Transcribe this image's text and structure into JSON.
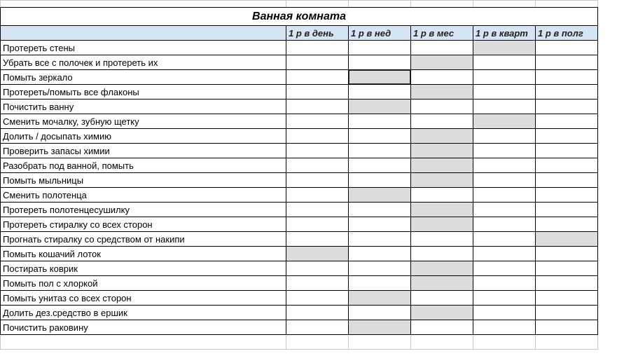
{
  "table": {
    "title": "Ванная комната",
    "columns": [
      "1 р в день",
      "1 р в нед",
      "1 р в мес",
      "1 р в кварт",
      "1 р в полг"
    ],
    "col_widths": {
      "task": 408,
      "freq": 89
    },
    "header_bg": "#d6e5f4",
    "fill_bg": "#dcdcdc",
    "border_color": "#000000",
    "grid_color": "#c9c9c9",
    "title_fontsize": 16,
    "body_fontsize": 13,
    "rows": [
      {
        "task": "Протереть стены",
        "marks": [
          false,
          false,
          false,
          true,
          false
        ],
        "selected": null
      },
      {
        "task": "Убрать все с полочек и протереть их",
        "marks": [
          false,
          false,
          true,
          false,
          false
        ],
        "selected": null
      },
      {
        "task": "Помыть зеркало",
        "marks": [
          false,
          true,
          false,
          false,
          false
        ],
        "selected": 1
      },
      {
        "task": "Протереть/помыть все флаконы",
        "marks": [
          false,
          false,
          true,
          false,
          false
        ],
        "selected": null
      },
      {
        "task": "Почистить ванну",
        "marks": [
          false,
          true,
          false,
          false,
          false
        ],
        "selected": null
      },
      {
        "task": "Сменить мочалку, зубную щетку",
        "marks": [
          false,
          false,
          false,
          true,
          false
        ],
        "selected": null
      },
      {
        "task": "Долить / досыпать химию",
        "marks": [
          false,
          false,
          true,
          false,
          false
        ],
        "selected": null
      },
      {
        "task": "Проверить запасы химии",
        "marks": [
          false,
          false,
          true,
          false,
          false
        ],
        "selected": null
      },
      {
        "task": "Разобрать под ванной, помыть",
        "marks": [
          false,
          false,
          true,
          false,
          false
        ],
        "selected": null
      },
      {
        "task": "Помыть мыльницы",
        "marks": [
          false,
          false,
          true,
          false,
          false
        ],
        "selected": null
      },
      {
        "task": "Сменить полотенца",
        "marks": [
          false,
          true,
          false,
          false,
          false
        ],
        "selected": null
      },
      {
        "task": "Протереть полотенцесушилку",
        "marks": [
          false,
          false,
          true,
          false,
          false
        ],
        "selected": null
      },
      {
        "task": "Протереть стиралку со всех сторон",
        "marks": [
          false,
          false,
          true,
          false,
          false
        ],
        "selected": null
      },
      {
        "task": "Прогнать стиралку со средством от накипи",
        "marks": [
          false,
          false,
          false,
          false,
          true
        ],
        "selected": null
      },
      {
        "task": "Помыть кошачий лоток",
        "marks": [
          true,
          false,
          false,
          false,
          false
        ],
        "selected": null
      },
      {
        "task": "Постирать коврик",
        "marks": [
          false,
          false,
          true,
          false,
          false
        ],
        "selected": null
      },
      {
        "task": "Помыть пол с хлоркой",
        "marks": [
          false,
          false,
          true,
          false,
          false
        ],
        "selected": null
      },
      {
        "task": "Помыть унитаз со всех сторон",
        "marks": [
          false,
          true,
          false,
          false,
          false
        ],
        "selected": null
      },
      {
        "task": "Долить дез.средство в ершик",
        "marks": [
          false,
          false,
          true,
          false,
          false
        ],
        "selected": null
      },
      {
        "task": "Почистить раковину",
        "marks": [
          false,
          true,
          false,
          false,
          false
        ],
        "selected": null
      }
    ]
  }
}
